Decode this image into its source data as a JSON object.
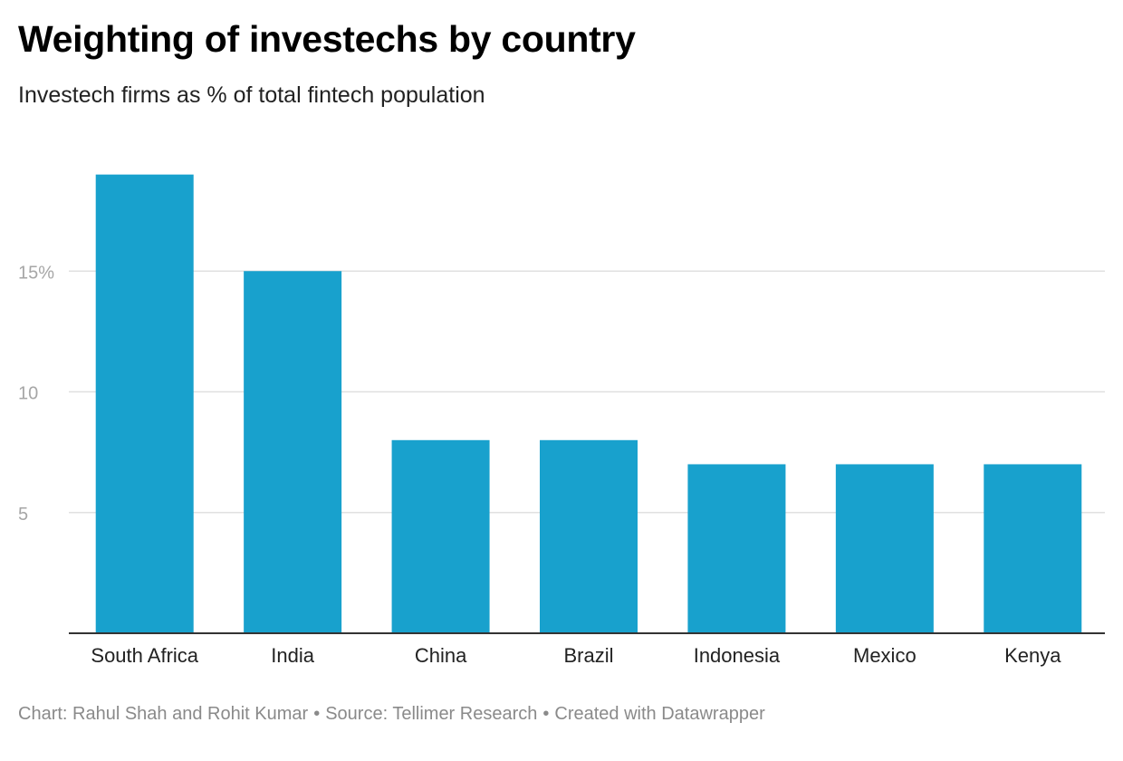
{
  "colors": {
    "bar": "#18a1cd",
    "grid": "#e0e0e0",
    "axis": "#333333",
    "tick_text": "#a6a6a6",
    "category_text": "#222222",
    "footer_text": "#8a8a8a"
  },
  "chart_data": {
    "type": "bar",
    "title": "Weighting of investechs by country",
    "subtitle": "Investech firms as % of total fintech population",
    "categories": [
      "South Africa",
      "India",
      "China",
      "Brazil",
      "Indonesia",
      "Mexico",
      "Kenya"
    ],
    "values": [
      19,
      15,
      8,
      8,
      7,
      7,
      7
    ],
    "xlabel": "",
    "ylabel": "",
    "ylim": [
      0,
      20
    ],
    "yticks": [
      {
        "value": 5,
        "label": "5"
      },
      {
        "value": 10,
        "label": "10"
      },
      {
        "value": 15,
        "label": "15%"
      }
    ],
    "grid": true,
    "legend": "none"
  },
  "footer": {
    "credit": "Chart: Rahul Shah and Rohit Kumar",
    "source": "Source: Tellimer Research",
    "tool": "Created with Datawrapper",
    "separator": "•"
  }
}
